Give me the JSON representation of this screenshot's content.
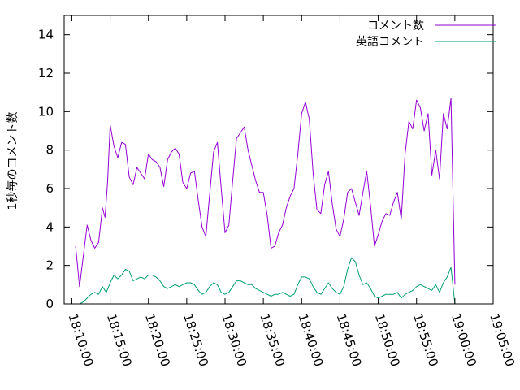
{
  "chart_data": {
    "type": "line",
    "title": "",
    "xlabel": "",
    "ylabel": "1秒毎のコメント数",
    "ylim": [
      0,
      15
    ],
    "yticks": [
      0,
      2,
      4,
      6,
      8,
      10,
      12,
      14
    ],
    "xlim": [
      "18:09:00",
      "19:05:00"
    ],
    "xticks": [
      "18:10:00",
      "18:15:00",
      "18:20:00",
      "18:25:00",
      "18:30:00",
      "18:35:00",
      "18:40:00",
      "18:45:00",
      "18:50:00",
      "18:55:00",
      "19:00:00",
      "19:05:00"
    ],
    "grid": false,
    "legend_position": "top-right",
    "series": [
      {
        "name": "コメント数",
        "color": "#9400d3",
        "points": [
          [
            "18:10:30",
            3.0
          ],
          [
            "18:11:00",
            0.9
          ],
          [
            "18:11:30",
            2.5
          ],
          [
            "18:12:00",
            4.1
          ],
          [
            "18:12:30",
            3.3
          ],
          [
            "18:13:00",
            2.9
          ],
          [
            "18:13:30",
            3.2
          ],
          [
            "18:14:00",
            5.0
          ],
          [
            "18:14:20",
            4.5
          ],
          [
            "18:14:40",
            6.3
          ],
          [
            "18:15:00",
            9.3
          ],
          [
            "18:15:30",
            8.2
          ],
          [
            "18:16:00",
            7.6
          ],
          [
            "18:16:30",
            8.4
          ],
          [
            "18:17:00",
            8.3
          ],
          [
            "18:17:30",
            6.6
          ],
          [
            "18:18:00",
            6.2
          ],
          [
            "18:18:30",
            7.1
          ],
          [
            "18:19:00",
            6.8
          ],
          [
            "18:19:30",
            6.5
          ],
          [
            "18:20:00",
            7.8
          ],
          [
            "18:20:30",
            7.5
          ],
          [
            "18:21:00",
            7.4
          ],
          [
            "18:21:30",
            7.1
          ],
          [
            "18:22:00",
            6.1
          ],
          [
            "18:22:30",
            7.5
          ],
          [
            "18:23:00",
            7.9
          ],
          [
            "18:23:30",
            8.1
          ],
          [
            "18:24:00",
            7.8
          ],
          [
            "18:24:30",
            6.3
          ],
          [
            "18:25:00",
            6.0
          ],
          [
            "18:25:30",
            6.8
          ],
          [
            "18:26:00",
            6.9
          ],
          [
            "18:26:30",
            5.4
          ],
          [
            "18:27:00",
            4.0
          ],
          [
            "18:27:30",
            3.5
          ],
          [
            "18:28:00",
            5.7
          ],
          [
            "18:28:30",
            7.9
          ],
          [
            "18:29:00",
            8.4
          ],
          [
            "18:29:30",
            6.0
          ],
          [
            "18:30:00",
            3.7
          ],
          [
            "18:30:30",
            4.1
          ],
          [
            "18:31:00",
            6.4
          ],
          [
            "18:31:30",
            8.6
          ],
          [
            "18:32:00",
            8.9
          ],
          [
            "18:32:30",
            9.2
          ],
          [
            "18:33:00",
            8.0
          ],
          [
            "18:33:30",
            7.2
          ],
          [
            "18:34:00",
            6.4
          ],
          [
            "18:34:30",
            5.8
          ],
          [
            "18:35:00",
            5.8
          ],
          [
            "18:35:30",
            4.6
          ],
          [
            "18:36:00",
            2.9
          ],
          [
            "18:36:30",
            3.0
          ],
          [
            "18:37:00",
            3.7
          ],
          [
            "18:37:30",
            4.1
          ],
          [
            "18:38:00",
            5.0
          ],
          [
            "18:38:30",
            5.6
          ],
          [
            "18:39:00",
            6.0
          ],
          [
            "18:39:30",
            7.8
          ],
          [
            "18:40:00",
            9.9
          ],
          [
            "18:40:30",
            10.5
          ],
          [
            "18:41:00",
            9.6
          ],
          [
            "18:41:30",
            6.8
          ],
          [
            "18:42:00",
            4.9
          ],
          [
            "18:42:30",
            4.7
          ],
          [
            "18:43:00",
            6.2
          ],
          [
            "18:43:30",
            6.9
          ],
          [
            "18:44:00",
            5.2
          ],
          [
            "18:44:30",
            3.9
          ],
          [
            "18:45:00",
            3.5
          ],
          [
            "18:45:30",
            4.4
          ],
          [
            "18:46:00",
            5.8
          ],
          [
            "18:46:30",
            6.0
          ],
          [
            "18:47:00",
            5.3
          ],
          [
            "18:47:30",
            4.6
          ],
          [
            "18:48:00",
            5.8
          ],
          [
            "18:48:30",
            6.9
          ],
          [
            "18:49:00",
            5.1
          ],
          [
            "18:49:30",
            3.0
          ],
          [
            "18:50:00",
            3.6
          ],
          [
            "18:50:30",
            4.3
          ],
          [
            "18:51:00",
            4.7
          ],
          [
            "18:51:30",
            4.6
          ],
          [
            "18:52:00",
            5.3
          ],
          [
            "18:52:30",
            5.8
          ],
          [
            "18:53:00",
            4.4
          ],
          [
            "18:53:30",
            7.8
          ],
          [
            "18:54:00",
            9.5
          ],
          [
            "18:54:30",
            9.1
          ],
          [
            "18:55:00",
            10.6
          ],
          [
            "18:55:30",
            10.2
          ],
          [
            "18:56:00",
            9.0
          ],
          [
            "18:56:30",
            9.9
          ],
          [
            "18:57:00",
            6.7
          ],
          [
            "18:57:30",
            8.0
          ],
          [
            "18:58:00",
            6.5
          ],
          [
            "18:58:30",
            9.9
          ],
          [
            "18:59:00",
            9.1
          ],
          [
            "18:59:30",
            10.7
          ],
          [
            "19:00:00",
            1.0
          ]
        ]
      },
      {
        "name": "英語コメント",
        "color": "#009e73",
        "points": [
          [
            "18:11:00",
            0.0
          ],
          [
            "18:11:30",
            0.1
          ],
          [
            "18:12:00",
            0.3
          ],
          [
            "18:12:30",
            0.5
          ],
          [
            "18:13:00",
            0.6
          ],
          [
            "18:13:30",
            0.5
          ],
          [
            "18:14:00",
            0.9
          ],
          [
            "18:14:30",
            0.6
          ],
          [
            "18:15:00",
            1.1
          ],
          [
            "18:15:30",
            1.5
          ],
          [
            "18:16:00",
            1.3
          ],
          [
            "18:16:30",
            1.5
          ],
          [
            "18:17:00",
            1.8
          ],
          [
            "18:17:30",
            1.7
          ],
          [
            "18:18:00",
            1.2
          ],
          [
            "18:18:30",
            1.3
          ],
          [
            "18:19:00",
            1.4
          ],
          [
            "18:19:30",
            1.3
          ],
          [
            "18:20:00",
            1.5
          ],
          [
            "18:20:30",
            1.5
          ],
          [
            "18:21:00",
            1.4
          ],
          [
            "18:21:30",
            1.2
          ],
          [
            "18:22:00",
            0.9
          ],
          [
            "18:22:30",
            0.8
          ],
          [
            "18:23:00",
            0.9
          ],
          [
            "18:23:30",
            1.0
          ],
          [
            "18:24:00",
            0.9
          ],
          [
            "18:24:30",
            1.0
          ],
          [
            "18:25:00",
            1.1
          ],
          [
            "18:25:30",
            1.1
          ],
          [
            "18:26:00",
            1.0
          ],
          [
            "18:26:30",
            0.7
          ],
          [
            "18:27:00",
            0.5
          ],
          [
            "18:27:30",
            0.6
          ],
          [
            "18:28:00",
            0.9
          ],
          [
            "18:28:30",
            1.1
          ],
          [
            "18:29:00",
            1.0
          ],
          [
            "18:29:30",
            0.6
          ],
          [
            "18:30:00",
            0.5
          ],
          [
            "18:30:30",
            0.6
          ],
          [
            "18:31:00",
            0.9
          ],
          [
            "18:31:30",
            1.2
          ],
          [
            "18:32:00",
            1.2
          ],
          [
            "18:32:30",
            1.1
          ],
          [
            "18:33:00",
            1.0
          ],
          [
            "18:33:30",
            1.0
          ],
          [
            "18:34:00",
            0.8
          ],
          [
            "18:34:30",
            0.7
          ],
          [
            "18:35:00",
            0.6
          ],
          [
            "18:35:30",
            0.5
          ],
          [
            "18:36:00",
            0.4
          ],
          [
            "18:36:30",
            0.5
          ],
          [
            "18:37:00",
            0.5
          ],
          [
            "18:37:30",
            0.6
          ],
          [
            "18:38:00",
            0.5
          ],
          [
            "18:38:30",
            0.4
          ],
          [
            "18:39:00",
            0.5
          ],
          [
            "18:39:30",
            1.0
          ],
          [
            "18:40:00",
            1.4
          ],
          [
            "18:40:30",
            1.4
          ],
          [
            "18:41:00",
            1.3
          ],
          [
            "18:41:30",
            0.9
          ],
          [
            "18:42:00",
            0.6
          ],
          [
            "18:42:30",
            0.5
          ],
          [
            "18:43:00",
            0.8
          ],
          [
            "18:43:30",
            1.1
          ],
          [
            "18:44:00",
            0.8
          ],
          [
            "18:44:30",
            0.6
          ],
          [
            "18:45:00",
            0.5
          ],
          [
            "18:45:30",
            0.9
          ],
          [
            "18:46:00",
            1.8
          ],
          [
            "18:46:30",
            2.4
          ],
          [
            "18:47:00",
            2.2
          ],
          [
            "18:47:30",
            1.5
          ],
          [
            "18:48:00",
            1.0
          ],
          [
            "18:48:30",
            1.1
          ],
          [
            "18:49:00",
            0.8
          ],
          [
            "18:49:30",
            0.4
          ],
          [
            "18:50:00",
            0.3
          ],
          [
            "18:50:30",
            0.4
          ],
          [
            "18:51:00",
            0.5
          ],
          [
            "18:51:30",
            0.5
          ],
          [
            "18:52:00",
            0.5
          ],
          [
            "18:52:30",
            0.6
          ],
          [
            "18:53:00",
            0.3
          ],
          [
            "18:53:30",
            0.5
          ],
          [
            "18:54:00",
            0.6
          ],
          [
            "18:54:30",
            0.7
          ],
          [
            "18:55:00",
            0.9
          ],
          [
            "18:55:30",
            1.0
          ],
          [
            "18:56:00",
            0.9
          ],
          [
            "18:56:30",
            0.8
          ],
          [
            "18:57:00",
            0.7
          ],
          [
            "18:57:30",
            1.0
          ],
          [
            "18:58:00",
            0.6
          ],
          [
            "18:58:30",
            1.1
          ],
          [
            "18:59:00",
            1.4
          ],
          [
            "18:59:30",
            1.9
          ],
          [
            "19:00:00",
            0.0
          ]
        ]
      }
    ]
  }
}
